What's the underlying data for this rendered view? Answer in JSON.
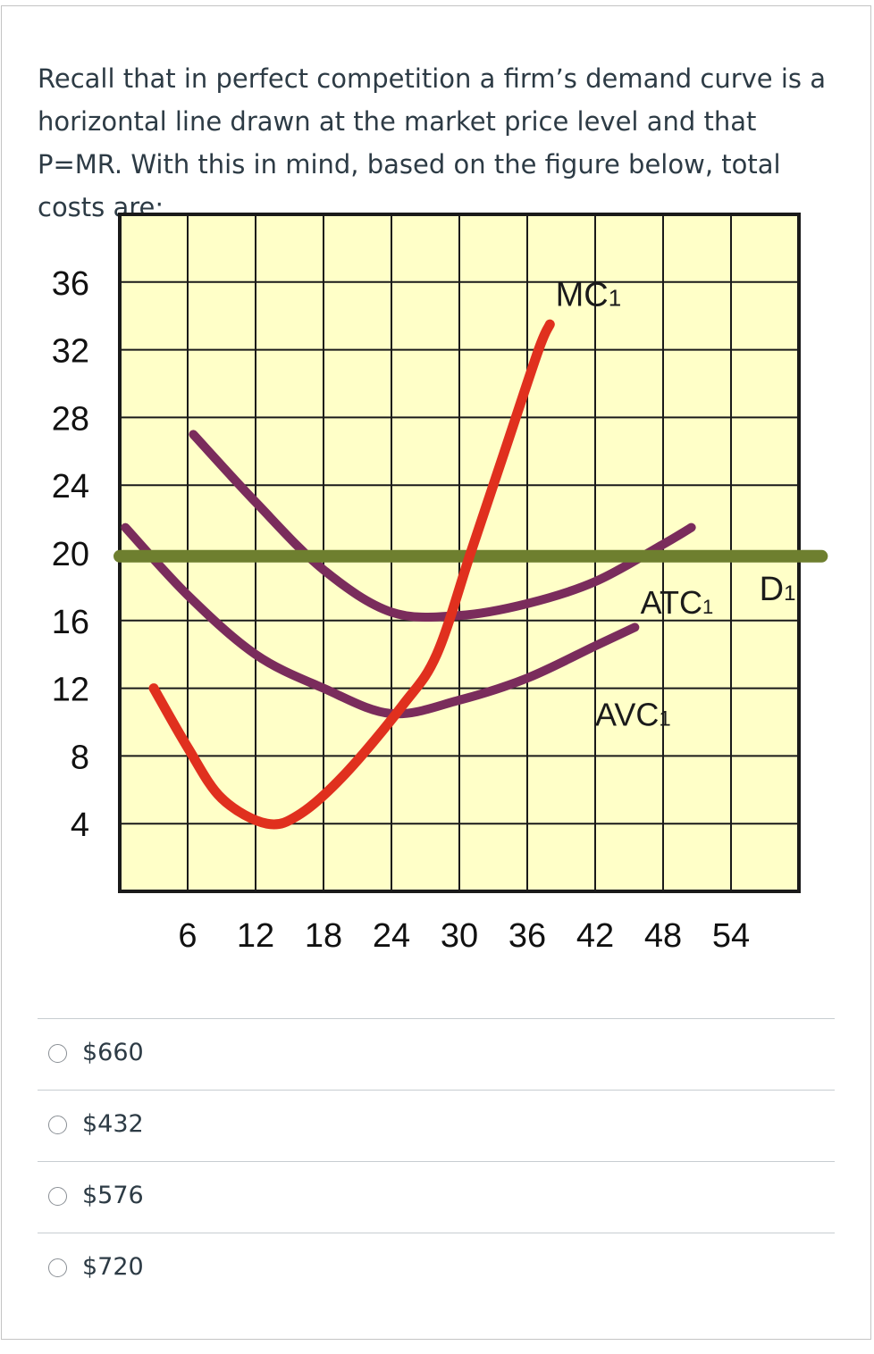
{
  "question": {
    "text": "Recall that in perfect competition a firm’s demand curve is a horizontal line drawn at the market price level and that P=MR. With this in mind, based on the figure below, total costs are:"
  },
  "chart_data": {
    "type": "line",
    "x_ticks": [
      6,
      12,
      18,
      24,
      30,
      36,
      42,
      48,
      54
    ],
    "y_ticks": [
      4,
      8,
      12,
      16,
      20,
      24,
      28,
      32,
      36
    ],
    "xlim": [
      0,
      60
    ],
    "ylim": [
      0,
      40
    ],
    "grid": true,
    "series": [
      {
        "name": "MC1",
        "label_main": "MC",
        "label_sub": "1",
        "color": "#e0301e",
        "points": [
          [
            3,
            12
          ],
          [
            6,
            8.5
          ],
          [
            9,
            5.5
          ],
          [
            13,
            4
          ],
          [
            16,
            4.6
          ],
          [
            20,
            7
          ],
          [
            25,
            11
          ],
          [
            28,
            14
          ],
          [
            31,
            20
          ],
          [
            34,
            26
          ],
          [
            37,
            32
          ],
          [
            38,
            33.5
          ]
        ]
      },
      {
        "name": "ATC1",
        "label_main": "ATC",
        "label_sub": "1",
        "color": "#7a2c5c",
        "points": [
          [
            6.5,
            27
          ],
          [
            12,
            23
          ],
          [
            18,
            19
          ],
          [
            24,
            16.5
          ],
          [
            30,
            16.3
          ],
          [
            36,
            17
          ],
          [
            42,
            18.3
          ],
          [
            48,
            20.5
          ],
          [
            50.5,
            21.5
          ]
        ]
      },
      {
        "name": "AVC1",
        "label_main": "AVC",
        "label_sub": "1",
        "color": "#7a2c5c",
        "points": [
          [
            0.5,
            21.5
          ],
          [
            6,
            17.5
          ],
          [
            12,
            14
          ],
          [
            18,
            12
          ],
          [
            24,
            10.5
          ],
          [
            30,
            11.3
          ],
          [
            36,
            12.6
          ],
          [
            42,
            14.5
          ],
          [
            45.5,
            15.6
          ]
        ]
      },
      {
        "name": "D1",
        "label_main": "D",
        "label_sub": "1",
        "color": "#6e7f2f",
        "points": [
          [
            0,
            19.8
          ],
          [
            62,
            19.8
          ]
        ]
      }
    ]
  },
  "answers": [
    {
      "label": "$660"
    },
    {
      "label": "$432"
    },
    {
      "label": "$576"
    },
    {
      "label": "$720"
    }
  ]
}
